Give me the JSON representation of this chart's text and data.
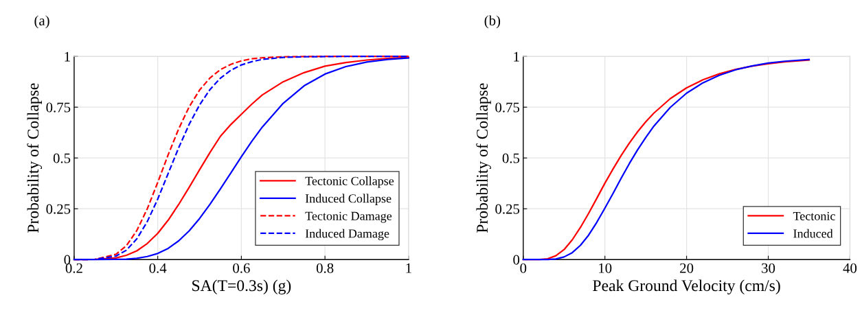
{
  "chart_data": [
    {
      "type": "line",
      "title": "(a)",
      "xlabel": "SA(T=0.3s) (g)",
      "ylabel": "Probability of Collapse",
      "x": [
        0.2,
        0.25,
        0.3,
        0.325,
        0.35,
        0.375,
        0.4,
        0.425,
        0.45,
        0.475,
        0.5,
        0.525,
        0.55,
        0.575,
        0.6,
        0.625,
        0.65,
        0.7,
        0.75,
        0.8,
        0.85,
        0.9,
        0.95,
        1.0
      ],
      "series": [
        {
          "name": "Tectonic Collapse",
          "color": "#ff0000",
          "line_style": "solid",
          "values": [
            0.0,
            0.001,
            0.008,
            0.021,
            0.043,
            0.079,
            0.129,
            0.194,
            0.271,
            0.355,
            0.442,
            0.527,
            0.607,
            0.665,
            0.715,
            0.765,
            0.81,
            0.875,
            0.92,
            0.952,
            0.97,
            0.982,
            0.99,
            0.995
          ]
        },
        {
          "name": "Induced Collapse",
          "color": "#0000ff",
          "line_style": "solid",
          "values": [
            0.0,
            0.0,
            0.001,
            0.002,
            0.006,
            0.015,
            0.03,
            0.055,
            0.092,
            0.141,
            0.202,
            0.272,
            0.348,
            0.427,
            0.506,
            0.582,
            0.652,
            0.769,
            0.855,
            0.913,
            0.95,
            0.972,
            0.985,
            0.992
          ]
        },
        {
          "name": "Tectonic Damage",
          "color": "#ff0000",
          "line_style": "dashed",
          "values": [
            0.0,
            0.001,
            0.026,
            0.068,
            0.143,
            0.25,
            0.38,
            0.516,
            0.643,
            0.751,
            0.834,
            0.894,
            0.935,
            0.961,
            0.978,
            0.988,
            0.993,
            0.998,
            0.999,
            1.0,
            1.0,
            1.0,
            1.0,
            1.0
          ]
        },
        {
          "name": "Induced Damage",
          "color": "#0000ff",
          "line_style": "dashed",
          "values": [
            0.0,
            0.001,
            0.017,
            0.046,
            0.102,
            0.187,
            0.298,
            0.424,
            0.55,
            0.665,
            0.761,
            0.837,
            0.893,
            0.932,
            0.958,
            0.974,
            0.985,
            0.995,
            0.998,
            0.999,
            1.0,
            1.0,
            1.0,
            1.0
          ]
        }
      ],
      "xlim": [
        0.2,
        1
      ],
      "xticks": [
        0.2,
        0.4,
        0.6,
        0.8,
        1
      ],
      "ylim": [
        0,
        1
      ],
      "yticks": [
        0,
        0.25,
        0.5,
        0.75,
        1
      ],
      "grid": true,
      "legend": "bottom right",
      "marker": "none"
    },
    {
      "type": "line",
      "title": "(b)",
      "xlabel": "Peak Ground Velocity (cm/s)",
      "ylabel": "Probability of Collapse",
      "x": [
        0,
        2,
        3,
        4,
        5,
        6,
        7,
        8,
        9,
        10,
        11,
        12,
        13,
        14,
        15,
        16,
        18,
        20,
        22,
        24,
        26,
        28,
        30,
        32,
        35
      ],
      "series": [
        {
          "name": "Tectonic",
          "color": "#ff0000",
          "line_style": "solid",
          "values": [
            0.0,
            0.0,
            0.004,
            0.019,
            0.049,
            0.097,
            0.158,
            0.227,
            0.301,
            0.376,
            0.446,
            0.513,
            0.574,
            0.629,
            0.678,
            0.721,
            0.792,
            0.845,
            0.885,
            0.914,
            0.936,
            0.952,
            0.964,
            0.973,
            0.982
          ]
        },
        {
          "name": "Induced",
          "color": "#0000ff",
          "line_style": "solid",
          "values": [
            0.0,
            0.0,
            0.0,
            0.003,
            0.013,
            0.034,
            0.07,
            0.12,
            0.183,
            0.253,
            0.326,
            0.401,
            0.473,
            0.54,
            0.601,
            0.657,
            0.749,
            0.819,
            0.87,
            0.907,
            0.934,
            0.953,
            0.967,
            0.976,
            0.985
          ]
        }
      ],
      "xlim": [
        0,
        40
      ],
      "xticks": [
        0,
        10,
        20,
        30,
        40
      ],
      "ylim": [
        0,
        1
      ],
      "yticks": [
        0,
        0.25,
        0.5,
        0.75,
        1
      ],
      "grid": true,
      "legend": "bottom right",
      "marker": "none"
    }
  ]
}
